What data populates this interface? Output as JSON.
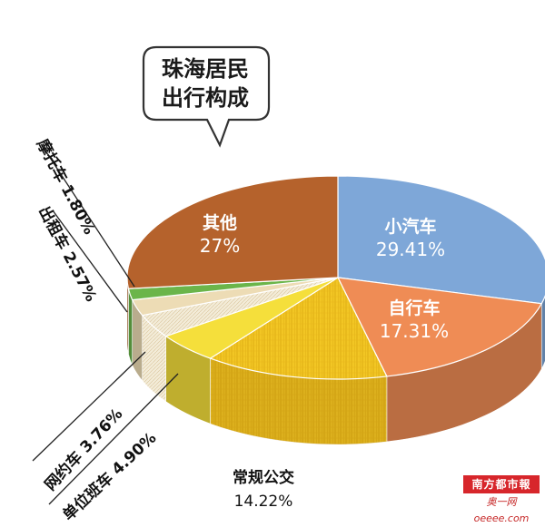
{
  "chart_data": {
    "type": "pie",
    "title": "珠海居民\n出行构成",
    "title_lines": [
      "珠海居民",
      "出行构成"
    ],
    "slices": [
      {
        "label": "小汽车",
        "value": 29.41,
        "display": "29.41%",
        "color": "#7ea7d8"
      },
      {
        "label": "自行车",
        "value": 17.31,
        "display": "17.31%",
        "color": "#ef8c55"
      },
      {
        "label": "常规公交",
        "value": 14.22,
        "display": "14.22%",
        "color": "#f2c624"
      },
      {
        "label": "单位班车",
        "value": 4.9,
        "display": "4.90%",
        "color": "#f5df3b"
      },
      {
        "label": "网约车",
        "value": 3.76,
        "display": "3.76%",
        "color": "#f3ecd8"
      },
      {
        "label": "出租车",
        "value": 2.57,
        "display": "2.57%",
        "color": "#eddcb5"
      },
      {
        "label": "摩托车",
        "value": 1.8,
        "display": "1.80%",
        "color": "#6bb54a"
      },
      {
        "label": "其他",
        "value": 27,
        "display": "27%",
        "color": "#b5622c"
      }
    ],
    "legend": "none",
    "view": "3d-tilted"
  },
  "labels": {
    "moto": "摩托车  1.80%",
    "taxi": "出租车  2.57%",
    "ridehail": "网约车  3.76%",
    "shuttle": "单位班车  4.90%"
  },
  "logo": {
    "top": "南方都市報",
    "bottom": "奥一网 oeeee.com"
  }
}
